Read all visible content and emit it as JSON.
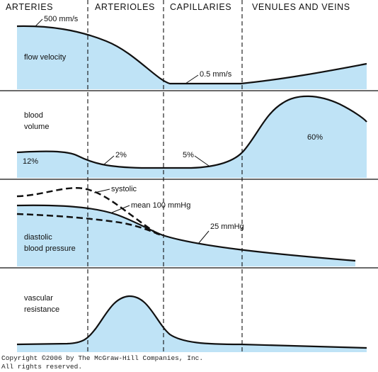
{
  "segments": [
    "ARTERIES",
    "ARTERIOLES",
    "CAPILLARIES",
    "VENULES AND VEINS"
  ],
  "panels": {
    "flow_velocity": {
      "label": "flow velocity",
      "arteries_value": "500 mm/s",
      "capillaries_value": "0.5 mm/s"
    },
    "blood_volume": {
      "label_line1": "blood",
      "label_line2": "volume",
      "arteries_pct": "12%",
      "arterioles_pct": "2%",
      "capillaries_pct": "5%",
      "veins_pct": "60%"
    },
    "blood_pressure": {
      "systolic": "systolic",
      "mean": "mean 100 mmHg",
      "capillary_pressure": "25 mmHg",
      "label_line1": "diastolic",
      "label_line2": "blood pressure"
    },
    "vascular_resistance": {
      "label_line1": "vascular",
      "label_line2": "resistance"
    }
  },
  "colors": {
    "fill": "#bfe3f6",
    "stroke": "#111111"
  },
  "copyright": {
    "line1": "Copyright ©2006 by The McGraw-Hill Companies, Inc.",
    "line2": "All rights reserved."
  }
}
